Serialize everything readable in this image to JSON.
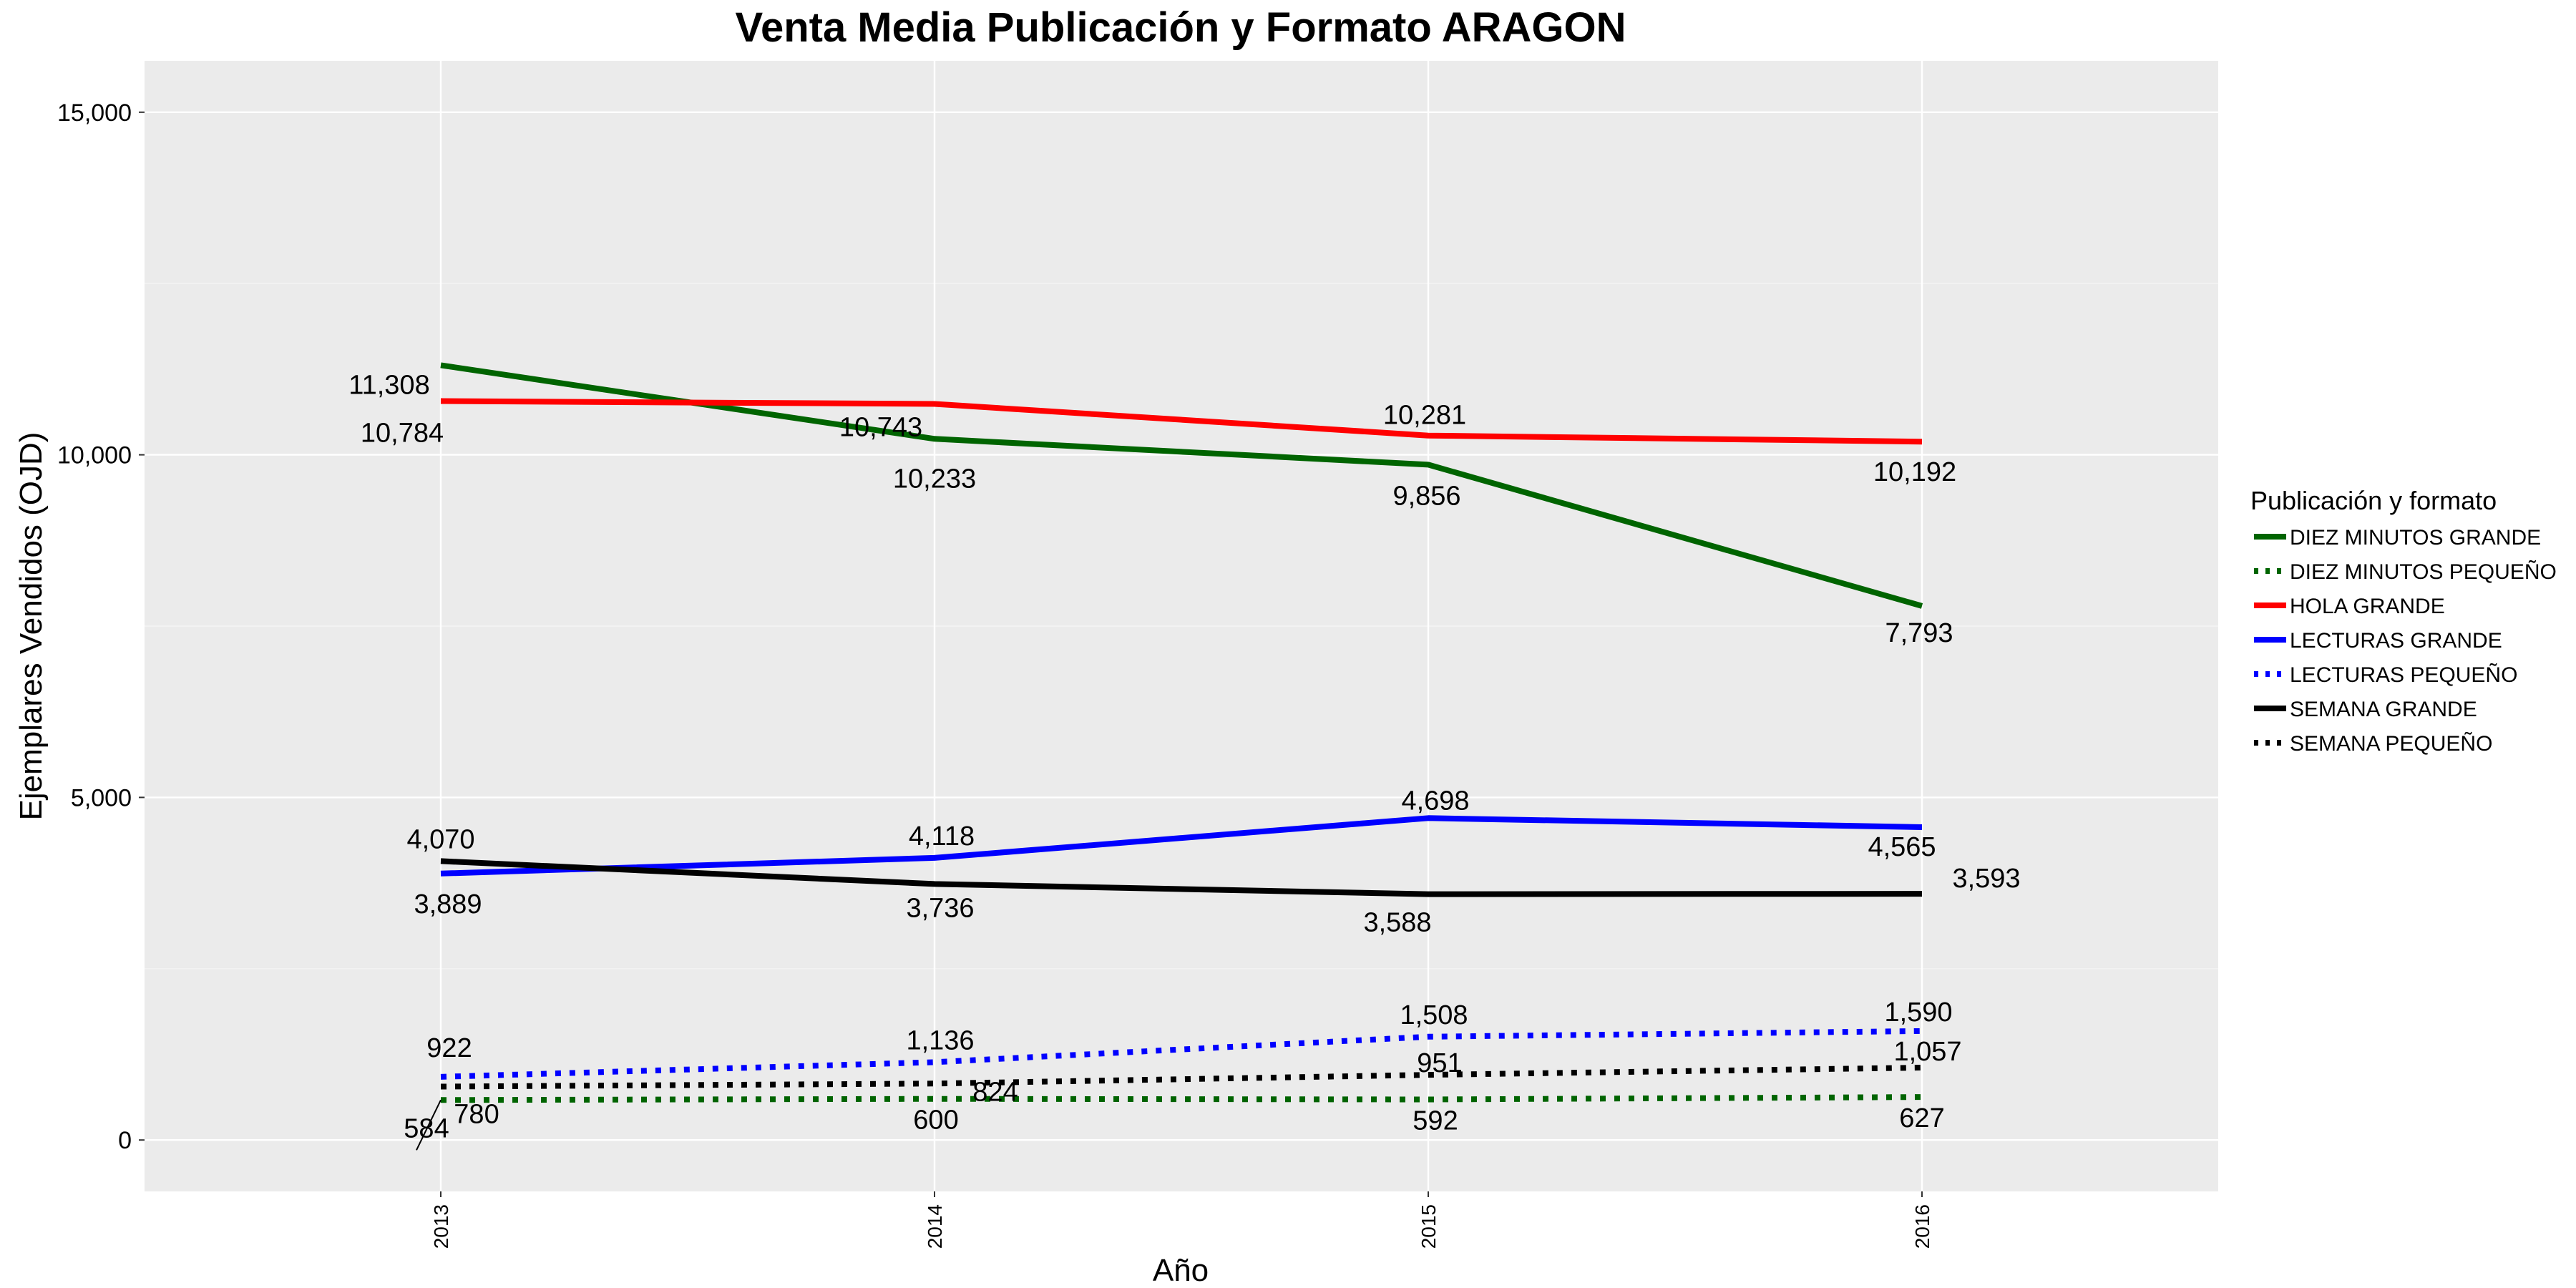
{
  "chart_data": {
    "type": "line",
    "title": "Venta Media Publicación y Formato  ARAGON",
    "xlabel": "Año",
    "ylabel": "Ejemplares Vendidos (OJD)",
    "x": [
      "2013",
      "2014",
      "2015",
      "2016"
    ],
    "yticks": [
      0,
      5000,
      10000,
      15000
    ],
    "ytick_labels": [
      "0",
      "5,000",
      "10,000",
      "15,000"
    ],
    "ylim": [
      -750,
      15750
    ],
    "xlim": [
      2012.4,
      2016.6
    ],
    "grid": true,
    "legend_title": "Publicación y formato",
    "legend_position": "right",
    "series": [
      {
        "name": "DIEZ MINUTOS GRANDE",
        "values": [
          11308,
          10233,
          9856,
          7793
        ],
        "labels": [
          "11,308",
          "10,233",
          "9,856",
          "7,793"
        ],
        "color": "#006400",
        "dash": "solid"
      },
      {
        "name": "DIEZ MINUTOS PEQUEÑO",
        "values": [
          584,
          600,
          592,
          627
        ],
        "labels": [
          "584",
          "600",
          "592",
          "627"
        ],
        "color": "#006400",
        "dash": "dotted"
      },
      {
        "name": "HOLA GRANDE",
        "values": [
          10784,
          10743,
          10281,
          10192
        ],
        "labels": [
          "10,784",
          "10,743",
          "10,281",
          "10,192"
        ],
        "color": "#ff0000",
        "dash": "solid"
      },
      {
        "name": "LECTURAS GRANDE",
        "values": [
          3889,
          4118,
          4698,
          4565
        ],
        "labels": [
          "3,889",
          "4,118",
          "4,698",
          "4,565"
        ],
        "color": "#0000ff",
        "dash": "solid"
      },
      {
        "name": "LECTURAS PEQUEÑO",
        "values": [
          922,
          1136,
          1508,
          1590
        ],
        "labels": [
          "922",
          "1,136",
          "1,508",
          "1,590"
        ],
        "color": "#0000ff",
        "dash": "dotted"
      },
      {
        "name": "SEMANA GRANDE",
        "values": [
          4070,
          3736,
          3588,
          3593
        ],
        "labels": [
          "4,070",
          "3,736",
          "3,588",
          "3,593"
        ],
        "color": "#000000",
        "dash": "solid"
      },
      {
        "name": "SEMANA PEQUEÑO",
        "values": [
          780,
          824,
          951,
          1057
        ],
        "labels": [
          "780",
          "824",
          "951",
          "1,057"
        ],
        "color": "#000000",
        "dash": "dotted"
      }
    ]
  }
}
